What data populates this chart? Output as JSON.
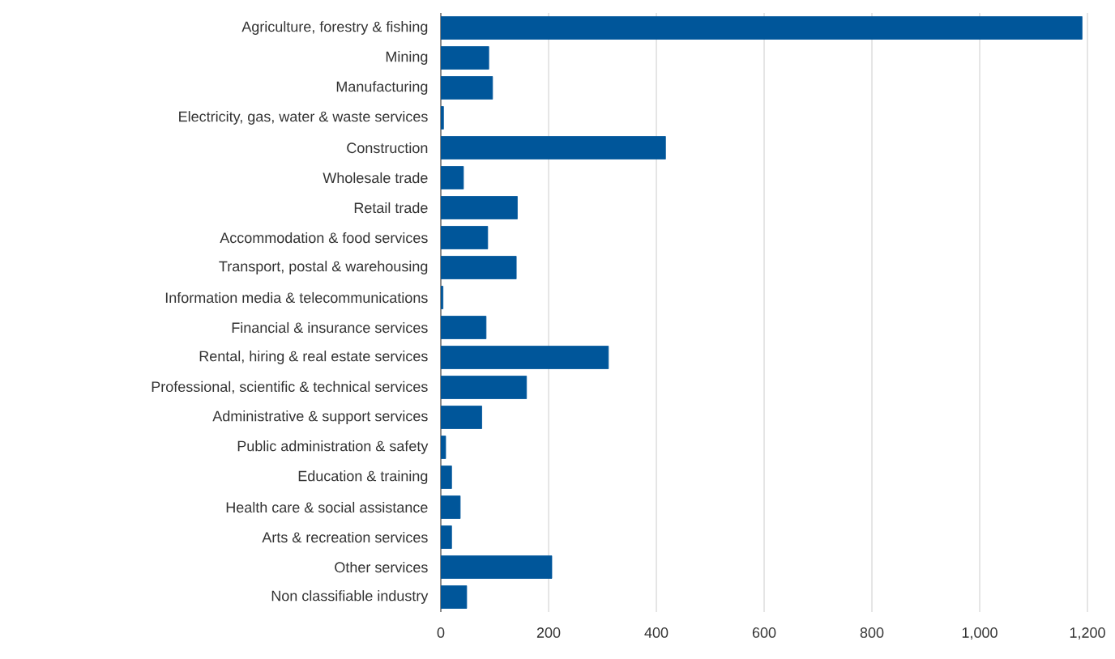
{
  "chart_data": {
    "type": "bar",
    "orientation": "horizontal",
    "color": "#00569a",
    "categories": [
      "Agriculture, forestry & fishing",
      "Mining",
      "Manufacturing",
      "Electricity, gas, water & waste services",
      "Construction",
      "Wholesale trade",
      "Retail trade",
      "Accommodation & food services",
      "Transport, postal & warehousing",
      "Information media & telecommunications",
      "Financial & insurance services",
      "Rental, hiring & real estate services",
      "Professional, scientific & technical services",
      "Administrative & support services",
      "Public administration & safety",
      "Education & training",
      "Health care & social assistance",
      "Arts & recreation services",
      "Other services",
      "Non classifiable industry"
    ],
    "values": [
      1190,
      89,
      96,
      5,
      417,
      42,
      142,
      87,
      140,
      4,
      84,
      311,
      159,
      76,
      9,
      20,
      36,
      20,
      206,
      48
    ],
    "xlim": [
      0,
      1200
    ],
    "xticks": [
      0,
      200,
      400,
      600,
      800,
      {
        "value": 1000,
        "label": "1,000"
      },
      {
        "value": 1200,
        "label": "1,200"
      }
    ],
    "grid": "x"
  }
}
